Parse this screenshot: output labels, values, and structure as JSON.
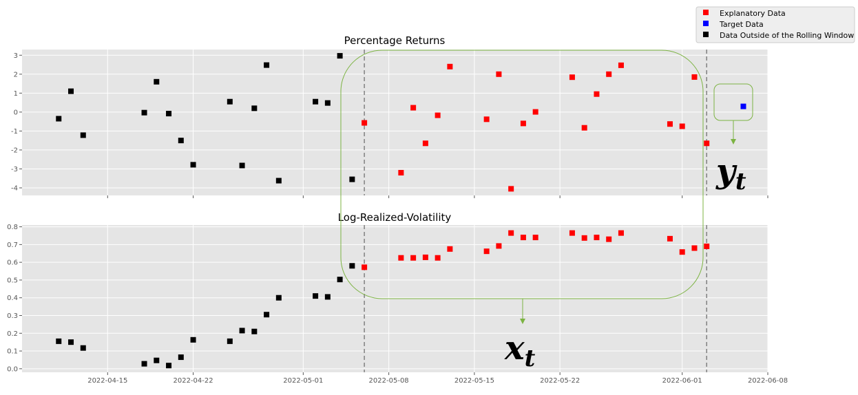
{
  "colors": {
    "explanatory": "#ff0000",
    "target": "#0000ff",
    "outside": "#000000",
    "annotation": "#7cb342",
    "window_line": "#808080",
    "plot_bg": "#e5e5e5",
    "grid": "#ffffff"
  },
  "legend": {
    "entries": [
      {
        "label": "Explanatory Data",
        "color": "#ff0000"
      },
      {
        "label": "Target Data",
        "color": "#0000ff"
      },
      {
        "label": "Data Outside of the Rolling Window",
        "color": "#000000"
      }
    ]
  },
  "annotations": {
    "y_label": "y",
    "y_sub": "t",
    "x_label": "x",
    "x_sub": "t"
  },
  "chart_data": [
    {
      "type": "scatter",
      "title": "Percentage Returns",
      "xlabel": "",
      "ylabel": "",
      "xlim": [
        "2022-04-08",
        "2022-06-08"
      ],
      "ylim": [
        -4.4,
        3.3
      ],
      "yticks": [
        3,
        2,
        1,
        0,
        -1,
        -2,
        -3,
        -4
      ],
      "grid": true,
      "window_lines": [
        "2022-05-06",
        "2022-06-03"
      ],
      "series": [
        {
          "name": "Data Outside of the Rolling Window",
          "color": "#000000",
          "points": [
            {
              "x": "2022-04-11",
              "y": -0.35
            },
            {
              "x": "2022-04-12",
              "y": 1.1
            },
            {
              "x": "2022-04-13",
              "y": -1.22
            },
            {
              "x": "2022-04-18",
              "y": -0.03
            },
            {
              "x": "2022-04-19",
              "y": 1.6
            },
            {
              "x": "2022-04-20",
              "y": -0.08
            },
            {
              "x": "2022-04-21",
              "y": -1.5
            },
            {
              "x": "2022-04-22",
              "y": -2.78
            },
            {
              "x": "2022-04-25",
              "y": 0.55
            },
            {
              "x": "2022-04-26",
              "y": -2.82
            },
            {
              "x": "2022-04-27",
              "y": 0.2
            },
            {
              "x": "2022-04-28",
              "y": 2.48
            },
            {
              "x": "2022-04-29",
              "y": -3.62
            },
            {
              "x": "2022-05-02",
              "y": 0.55
            },
            {
              "x": "2022-05-03",
              "y": 0.48
            },
            {
              "x": "2022-05-04",
              "y": 2.97
            },
            {
              "x": "2022-05-05",
              "y": -3.55
            }
          ]
        },
        {
          "name": "Explanatory Data",
          "color": "#ff0000",
          "points": [
            {
              "x": "2022-05-06",
              "y": -0.57
            },
            {
              "x": "2022-05-09",
              "y": -3.2
            },
            {
              "x": "2022-05-10",
              "y": 0.23
            },
            {
              "x": "2022-05-11",
              "y": -1.65
            },
            {
              "x": "2022-05-12",
              "y": -0.17
            },
            {
              "x": "2022-05-13",
              "y": 2.4
            },
            {
              "x": "2022-05-16",
              "y": -0.38
            },
            {
              "x": "2022-05-17",
              "y": 2.0
            },
            {
              "x": "2022-05-18",
              "y": -4.05
            },
            {
              "x": "2022-05-19",
              "y": -0.6
            },
            {
              "x": "2022-05-20",
              "y": 0.01
            },
            {
              "x": "2022-05-23",
              "y": 1.84
            },
            {
              "x": "2022-05-24",
              "y": -0.83
            },
            {
              "x": "2022-05-25",
              "y": 0.95
            },
            {
              "x": "2022-05-26",
              "y": 2.0
            },
            {
              "x": "2022-05-27",
              "y": 2.47
            },
            {
              "x": "2022-05-31",
              "y": -0.63
            },
            {
              "x": "2022-06-01",
              "y": -0.75
            },
            {
              "x": "2022-06-02",
              "y": 1.85
            },
            {
              "x": "2022-06-03",
              "y": -1.65
            }
          ]
        },
        {
          "name": "Target Data",
          "color": "#0000ff",
          "points": [
            {
              "x": "2022-06-06",
              "y": 0.3
            }
          ]
        }
      ]
    },
    {
      "type": "scatter",
      "title": "Log-Realized-Volatility",
      "xlabel": "",
      "ylabel": "",
      "xlim": [
        "2022-04-08",
        "2022-06-08"
      ],
      "ylim": [
        -0.02,
        0.81
      ],
      "yticks": [
        0.8,
        0.7,
        0.6,
        0.5,
        0.4,
        0.3,
        0.2,
        0.1,
        0.0
      ],
      "ytick_labels": [
        "0.8",
        "0.7",
        "0.6",
        "0.5",
        "0.4",
        "0.3",
        "0.2",
        "0.1",
        "0.0"
      ],
      "xticks": [
        "2022-04-15",
        "2022-04-22",
        "2022-05-01",
        "2022-05-08",
        "2022-05-15",
        "2022-05-22",
        "2022-06-01",
        "2022-06-08"
      ],
      "grid": true,
      "window_lines": [
        "2022-05-06",
        "2022-06-03"
      ],
      "series": [
        {
          "name": "Data Outside of the Rolling Window",
          "color": "#000000",
          "points": [
            {
              "x": "2022-04-11",
              "y": 0.155
            },
            {
              "x": "2022-04-12",
              "y": 0.15
            },
            {
              "x": "2022-04-13",
              "y": 0.117
            },
            {
              "x": "2022-04-18",
              "y": 0.028
            },
            {
              "x": "2022-04-19",
              "y": 0.047
            },
            {
              "x": "2022-04-20",
              "y": 0.018
            },
            {
              "x": "2022-04-21",
              "y": 0.065
            },
            {
              "x": "2022-04-22",
              "y": 0.163
            },
            {
              "x": "2022-04-25",
              "y": 0.155
            },
            {
              "x": "2022-04-26",
              "y": 0.215
            },
            {
              "x": "2022-04-27",
              "y": 0.21
            },
            {
              "x": "2022-04-28",
              "y": 0.305
            },
            {
              "x": "2022-04-29",
              "y": 0.4
            },
            {
              "x": "2022-05-02",
              "y": 0.41
            },
            {
              "x": "2022-05-03",
              "y": 0.405
            },
            {
              "x": "2022-05-04",
              "y": 0.503
            },
            {
              "x": "2022-05-05",
              "y": 0.58
            }
          ]
        },
        {
          "name": "Explanatory Data",
          "color": "#ff0000",
          "points": [
            {
              "x": "2022-05-06",
              "y": 0.572
            },
            {
              "x": "2022-05-09",
              "y": 0.625
            },
            {
              "x": "2022-05-10",
              "y": 0.625
            },
            {
              "x": "2022-05-11",
              "y": 0.628
            },
            {
              "x": "2022-05-12",
              "y": 0.625
            },
            {
              "x": "2022-05-13",
              "y": 0.675
            },
            {
              "x": "2022-05-16",
              "y": 0.662
            },
            {
              "x": "2022-05-17",
              "y": 0.692
            },
            {
              "x": "2022-05-18",
              "y": 0.765
            },
            {
              "x": "2022-05-19",
              "y": 0.74
            },
            {
              "x": "2022-05-20",
              "y": 0.74
            },
            {
              "x": "2022-05-23",
              "y": 0.765
            },
            {
              "x": "2022-05-24",
              "y": 0.737
            },
            {
              "x": "2022-05-25",
              "y": 0.74
            },
            {
              "x": "2022-05-26",
              "y": 0.73
            },
            {
              "x": "2022-05-27",
              "y": 0.765
            },
            {
              "x": "2022-05-31",
              "y": 0.733
            },
            {
              "x": "2022-06-01",
              "y": 0.658
            },
            {
              "x": "2022-06-02",
              "y": 0.68
            },
            {
              "x": "2022-06-03",
              "y": 0.69
            }
          ]
        }
      ]
    }
  ]
}
